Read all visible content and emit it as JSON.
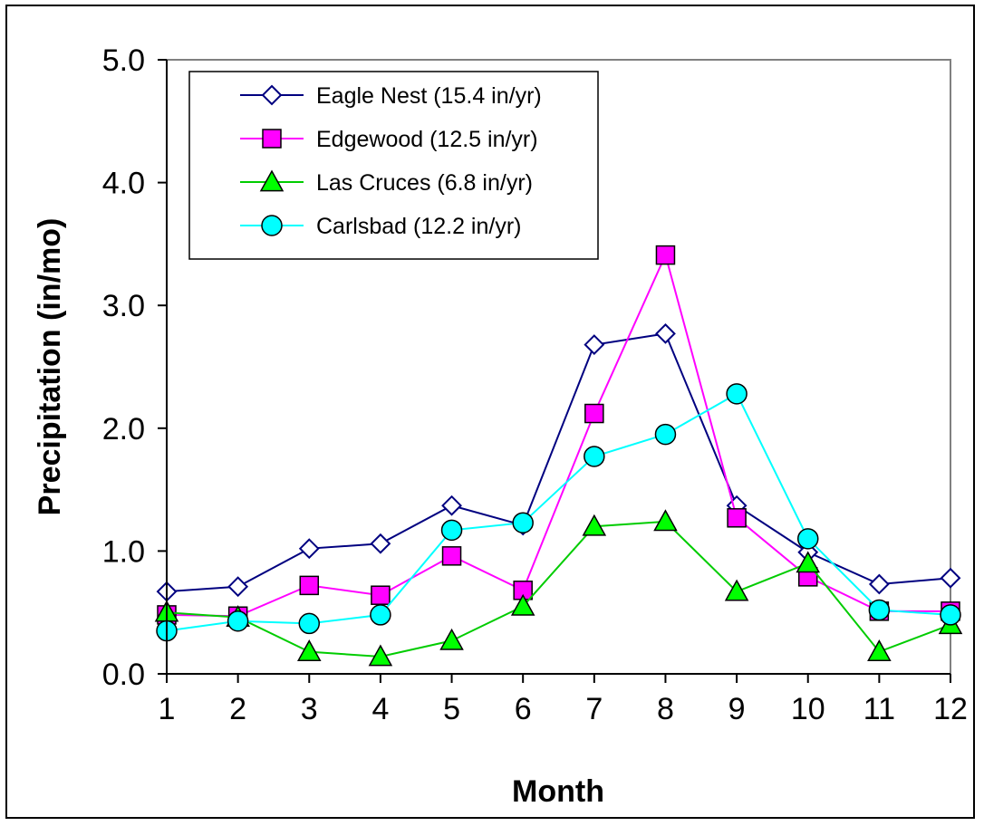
{
  "chart_data": {
    "type": "line",
    "title": "",
    "xlabel": "Month",
    "ylabel": "Precipitation (in/mo)",
    "x": [
      1,
      2,
      3,
      4,
      5,
      6,
      7,
      8,
      9,
      10,
      11,
      12
    ],
    "x_tick_labels": [
      "1",
      "2",
      "3",
      "4",
      "5",
      "6",
      "7",
      "8",
      "9",
      "10",
      "11",
      "12"
    ],
    "xlim": [
      1,
      12
    ],
    "ylim": [
      0,
      5
    ],
    "y_ticks": [
      0,
      1,
      2,
      3,
      4,
      5
    ],
    "y_tick_labels": [
      "0.0",
      "1.0",
      "2.0",
      "3.0",
      "4.0",
      "5.0"
    ],
    "grid": false,
    "legend_position": "top-left",
    "series": [
      {
        "name": "Eagle Nest (15.4 in/yr)",
        "color": "#000080",
        "marker": "diamond",
        "marker_fill": "#ffffff",
        "values": [
          0.67,
          0.71,
          1.02,
          1.06,
          1.37,
          1.21,
          2.68,
          2.77,
          1.37,
          0.99,
          0.73,
          0.78
        ]
      },
      {
        "name": "Edgewood (12.5 in/yr)",
        "color": "#ff00ff",
        "marker": "square",
        "marker_fill": "#ff00ff",
        "values": [
          0.48,
          0.47,
          0.72,
          0.64,
          0.96,
          0.68,
          2.12,
          3.41,
          1.27,
          0.79,
          0.51,
          0.51
        ]
      },
      {
        "name": "Las Cruces (6.8 in/yr)",
        "color": "#00cc00",
        "marker": "triangle",
        "marker_fill": "#00ff00",
        "values": [
          0.5,
          0.46,
          0.18,
          0.14,
          0.27,
          0.55,
          1.2,
          1.24,
          0.67,
          0.9,
          0.18,
          0.4
        ]
      },
      {
        "name": "Carlsbad (12.2 in/yr)",
        "color": "#00ffff",
        "marker": "circle",
        "marker_fill": "#00ffff",
        "values": [
          0.35,
          0.43,
          0.41,
          0.48,
          1.17,
          1.23,
          1.77,
          1.95,
          2.28,
          1.1,
          0.52,
          0.48
        ]
      }
    ]
  }
}
